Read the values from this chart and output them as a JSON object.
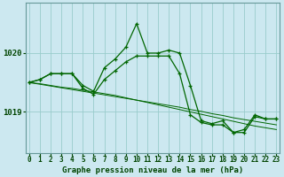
{
  "title": "Graphe pression niveau de la mer (hPa)",
  "bg_color": "#cce8f0",
  "line_color": "#006600",
  "grid_color": "#99cccc",
  "tick_color": "#004400",
  "line1": [
    1019.5,
    1019.55,
    1019.65,
    1019.65,
    1019.65,
    1019.45,
    1019.35,
    1019.75,
    1019.9,
    1020.1,
    1020.5,
    1020.0,
    1020.0,
    1020.05,
    1020.0,
    1019.45,
    1018.85,
    1018.8,
    1018.85,
    1018.65,
    1018.7,
    1018.95,
    1018.88,
    1018.88
  ],
  "line2": [
    1019.5,
    1019.55,
    1019.65,
    1019.65,
    1019.65,
    1019.4,
    1019.3,
    1019.55,
    1019.7,
    1019.85,
    1019.95,
    1019.95,
    1019.95,
    1019.95,
    1019.65,
    1018.95,
    1018.82,
    1018.78,
    1018.78,
    1018.65,
    1018.65,
    1018.92,
    1018.88,
    1018.88
  ],
  "line3": [
    1019.5,
    1019.48,
    1019.45,
    1019.42,
    1019.4,
    1019.37,
    1019.34,
    1019.31,
    1019.28,
    1019.24,
    1019.2,
    1019.16,
    1019.12,
    1019.08,
    1019.04,
    1019.0,
    1018.96,
    1018.92,
    1018.88,
    1018.84,
    1018.8,
    1018.76,
    1018.73,
    1018.7
  ],
  "line4": [
    1019.5,
    1019.47,
    1019.44,
    1019.41,
    1019.38,
    1019.35,
    1019.32,
    1019.29,
    1019.26,
    1019.23,
    1019.2,
    1019.17,
    1019.14,
    1019.11,
    1019.08,
    1019.04,
    1019.01,
    1018.97,
    1018.94,
    1018.9,
    1018.87,
    1018.84,
    1018.81,
    1018.78
  ],
  "yticks": [
    1019,
    1020
  ],
  "ylim": [
    1018.3,
    1020.85
  ],
  "xlim": [
    -0.3,
    23.3
  ],
  "xticks": [
    0,
    1,
    2,
    3,
    4,
    5,
    6,
    7,
    8,
    9,
    10,
    11,
    12,
    13,
    14,
    15,
    16,
    17,
    18,
    19,
    20,
    21,
    22,
    23
  ],
  "tick_fontsize": 5.5,
  "ytick_fontsize": 6.5,
  "title_fontsize": 6.5
}
